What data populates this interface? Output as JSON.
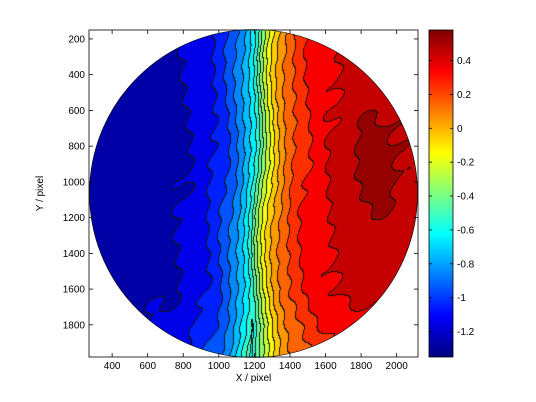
{
  "chart_data": {
    "type": "heatmap",
    "title": "",
    "xlabel": "X / pixel",
    "ylabel": "Y / pixel",
    "xlim": [
      270,
      2120
    ],
    "ylim": [
      150,
      1980
    ],
    "y_reversed": true,
    "x_ticks": [
      400,
      600,
      800,
      1000,
      1200,
      1400,
      1600,
      1800,
      2000
    ],
    "y_ticks": [
      200,
      400,
      600,
      800,
      1000,
      1200,
      1400,
      1600,
      1800
    ],
    "colorbar": {
      "colormap": "jet",
      "range": [
        -1.35,
        0.58
      ],
      "ticks": [
        0.4,
        0.2,
        0,
        -0.2,
        -0.4,
        -0.6,
        -0.8,
        -1,
        -1.2
      ],
      "tick_labels": [
        "0.4",
        "0.2",
        "0",
        "-0.2",
        "-0.4",
        "-0.6",
        "-0.8",
        "-1",
        "-1.2"
      ]
    },
    "field": {
      "shape": "circle",
      "center": [
        1195,
        1065
      ],
      "radius": 920,
      "description": "contour map; values increase from about -1.3 on the left through a sharp transition near X≈1200 to about 0.55 on the right"
    },
    "contour_levels": [
      -1.2,
      -1.1,
      -1.0,
      -0.9,
      -0.8,
      -0.7,
      -0.6,
      -0.5,
      -0.4,
      -0.3,
      -0.2,
      -0.1,
      0,
      0.1,
      0.2,
      0.3,
      0.4,
      0.5
    ]
  },
  "colors": {
    "axis": "#000000",
    "contour_line": "#000000",
    "background": "#ffffff"
  }
}
